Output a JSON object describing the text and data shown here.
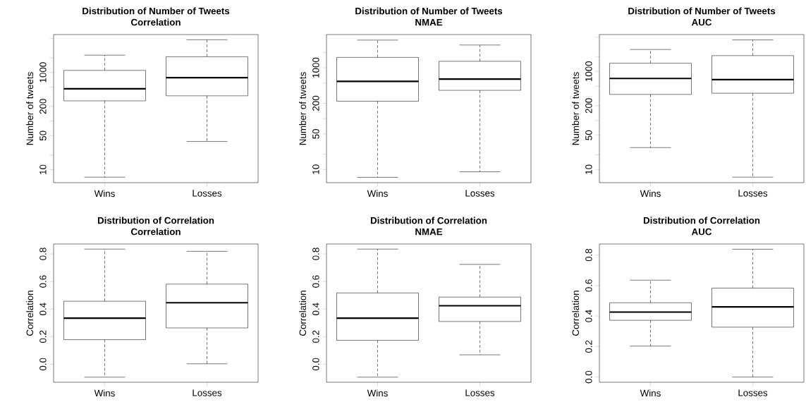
{
  "chart_data": [
    {
      "type": "box",
      "title": "Distribution of Number of Tweets",
      "subtitle": "Correlation",
      "ylabel": "Number of tweets",
      "categories": [
        "Wins",
        "Losses"
      ],
      "log": true,
      "ylim": [
        5.4,
        6000
      ],
      "yticks": [
        10,
        {
          "value": 20,
          "label": null
        },
        50,
        {
          "value": 100,
          "label": null
        },
        200,
        {
          "value": 500,
          "label": null
        },
        1000,
        {
          "value": 2000,
          "label": null
        },
        {
          "value": 5000,
          "label": null
        }
      ],
      "boxes": [
        {
          "low": 7,
          "q1": 260,
          "median": 460,
          "q3": 1100,
          "high": 2260
        },
        {
          "low": 38,
          "q1": 330,
          "median": 780,
          "q3": 2100,
          "high": 4700
        }
      ]
    },
    {
      "type": "box",
      "title": "Distribution of Number of Tweets",
      "subtitle": "NMAE",
      "ylabel": "Number of tweets",
      "categories": [
        "Wins",
        "Losses"
      ],
      "log": true,
      "ylim": [
        5.5,
        4500
      ],
      "yticks": [
        10,
        {
          "value": 20,
          "label": null
        },
        50,
        {
          "value": 100,
          "label": null
        },
        200,
        {
          "value": 500,
          "label": null
        },
        1000,
        {
          "value": 2000,
          "label": null
        }
      ],
      "boxes": [
        {
          "low": 7,
          "q1": 220,
          "median": 540,
          "q3": 1600,
          "high": 3500
        },
        {
          "low": 9,
          "q1": 360,
          "median": 600,
          "q3": 1340,
          "high": 2800
        }
      ]
    },
    {
      "type": "box",
      "title": "Distribution of Number of Tweets",
      "subtitle": "AUC",
      "ylabel": "Number of tweets",
      "categories": [
        "Wins",
        "Losses"
      ],
      "log": true,
      "ylim": [
        5.4,
        5650
      ],
      "yticks": [
        10,
        {
          "value": 20,
          "label": null
        },
        50,
        {
          "value": 100,
          "label": null
        },
        200,
        {
          "value": 500,
          "label": null
        },
        1000,
        {
          "value": 2000,
          "label": null
        },
        {
          "value": 5000,
          "label": null
        }
      ],
      "boxes": [
        {
          "low": 28,
          "q1": 340,
          "median": 720,
          "q3": 1470,
          "high": 2800
        },
        {
          "low": 7,
          "q1": 360,
          "median": 680,
          "q3": 2100,
          "high": 4400
        }
      ]
    },
    {
      "type": "box",
      "title": "Distribution of Correlation",
      "subtitle": "Correlation",
      "ylabel": "Correlation",
      "categories": [
        "Wins",
        "Losses"
      ],
      "ylim": [
        -0.131,
        0.872
      ],
      "yticks": [
        {
          "value": 0,
          "label": "0.0"
        },
        0.2,
        0.4,
        0.6,
        0.8
      ],
      "boxes": [
        {
          "low": -0.094,
          "q1": 0.178,
          "median": 0.334,
          "q3": 0.457,
          "high": 0.835
        },
        {
          "low": 0.003,
          "q1": 0.263,
          "median": 0.446,
          "q3": 0.581,
          "high": 0.819
        }
      ]
    },
    {
      "type": "box",
      "title": "Distribution of Correlation",
      "subtitle": "NMAE",
      "ylabel": "Correlation",
      "categories": [
        "Wins",
        "Losses"
      ],
      "ylim": [
        -0.131,
        0.872
      ],
      "yticks": [
        {
          "value": 0,
          "label": "0.0"
        },
        0.2,
        0.4,
        0.6,
        0.8
      ],
      "boxes": [
        {
          "low": -0.094,
          "q1": 0.173,
          "median": 0.334,
          "q3": 0.517,
          "high": 0.835
        },
        {
          "low": 0.068,
          "q1": 0.31,
          "median": 0.424,
          "q3": 0.487,
          "high": 0.724
        }
      ]
    },
    {
      "type": "box",
      "title": "Distribution of Correlation",
      "subtitle": "AUC",
      "ylabel": "Correlation",
      "categories": [
        "Wins",
        "Losses"
      ],
      "ylim": [
        -0.034,
        0.872
      ],
      "yticks": [
        {
          "value": 0,
          "label": "0.0"
        },
        0.2,
        0.4,
        0.6,
        0.8
      ],
      "boxes": [
        {
          "low": 0.203,
          "q1": 0.372,
          "median": 0.426,
          "q3": 0.487,
          "high": 0.635
        },
        {
          "low": 0.0,
          "q1": 0.327,
          "median": 0.46,
          "q3": 0.583,
          "high": 0.838
        }
      ]
    }
  ]
}
